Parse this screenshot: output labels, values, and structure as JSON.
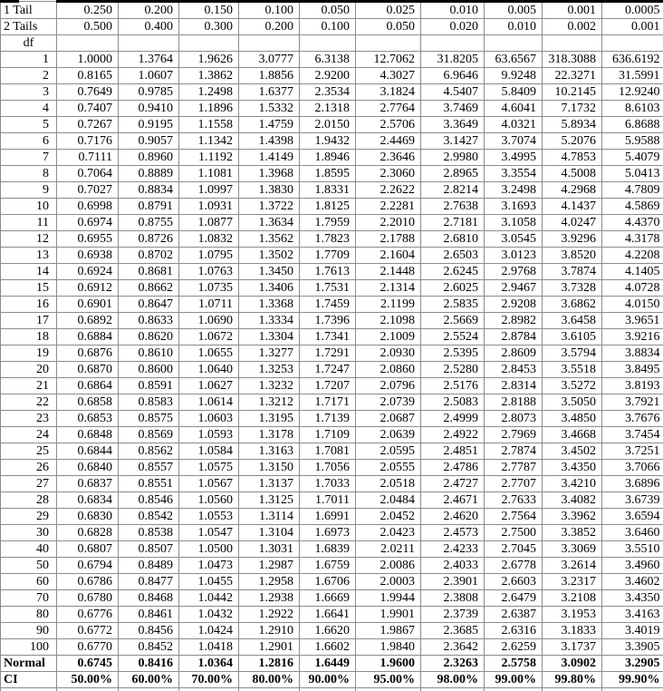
{
  "table": {
    "tail1": {
      "label": "1 Tail",
      "values": [
        "0.250",
        "0.200",
        "0.150",
        "0.100",
        "0.050",
        "0.025",
        "0.010",
        "0.005",
        "0.001",
        "0.0005"
      ]
    },
    "tail2": {
      "label": "2 Tails",
      "values": [
        "0.500",
        "0.400",
        "0.300",
        "0.200",
        "0.100",
        "0.050",
        "0.020",
        "0.010",
        "0.002",
        "0.001"
      ]
    },
    "df_label": "df",
    "df_rows": [
      {
        "df": "1",
        "values": [
          "1.0000",
          "1.3764",
          "1.9626",
          "3.0777",
          "6.3138",
          "12.7062",
          "31.8205",
          "63.6567",
          "318.3088",
          "636.6192"
        ]
      },
      {
        "df": "2",
        "values": [
          "0.8165",
          "1.0607",
          "1.3862",
          "1.8856",
          "2.9200",
          "4.3027",
          "6.9646",
          "9.9248",
          "22.3271",
          "31.5991"
        ]
      },
      {
        "df": "3",
        "values": [
          "0.7649",
          "0.9785",
          "1.2498",
          "1.6377",
          "2.3534",
          "3.1824",
          "4.5407",
          "5.8409",
          "10.2145",
          "12.9240"
        ]
      },
      {
        "df": "4",
        "values": [
          "0.7407",
          "0.9410",
          "1.1896",
          "1.5332",
          "2.1318",
          "2.7764",
          "3.7469",
          "4.6041",
          "7.1732",
          "8.6103"
        ]
      },
      {
        "df": "5",
        "values": [
          "0.7267",
          "0.9195",
          "1.1558",
          "1.4759",
          "2.0150",
          "2.5706",
          "3.3649",
          "4.0321",
          "5.8934",
          "6.8688"
        ]
      },
      {
        "df": "6",
        "values": [
          "0.7176",
          "0.9057",
          "1.1342",
          "1.4398",
          "1.9432",
          "2.4469",
          "3.1427",
          "3.7074",
          "5.2076",
          "5.9588"
        ]
      },
      {
        "df": "7",
        "values": [
          "0.7111",
          "0.8960",
          "1.1192",
          "1.4149",
          "1.8946",
          "2.3646",
          "2.9980",
          "3.4995",
          "4.7853",
          "5.4079"
        ]
      },
      {
        "df": "8",
        "values": [
          "0.7064",
          "0.8889",
          "1.1081",
          "1.3968",
          "1.8595",
          "2.3060",
          "2.8965",
          "3.3554",
          "4.5008",
          "5.0413"
        ]
      },
      {
        "df": "9",
        "values": [
          "0.7027",
          "0.8834",
          "1.0997",
          "1.3830",
          "1.8331",
          "2.2622",
          "2.8214",
          "3.2498",
          "4.2968",
          "4.7809"
        ]
      },
      {
        "df": "10",
        "values": [
          "0.6998",
          "0.8791",
          "1.0931",
          "1.3722",
          "1.8125",
          "2.2281",
          "2.7638",
          "3.1693",
          "4.1437",
          "4.5869"
        ]
      },
      {
        "df": "11",
        "values": [
          "0.6974",
          "0.8755",
          "1.0877",
          "1.3634",
          "1.7959",
          "2.2010",
          "2.7181",
          "3.1058",
          "4.0247",
          "4.4370"
        ]
      },
      {
        "df": "12",
        "values": [
          "0.6955",
          "0.8726",
          "1.0832",
          "1.3562",
          "1.7823",
          "2.1788",
          "2.6810",
          "3.0545",
          "3.9296",
          "4.3178"
        ]
      },
      {
        "df": "13",
        "values": [
          "0.6938",
          "0.8702",
          "1.0795",
          "1.3502",
          "1.7709",
          "2.1604",
          "2.6503",
          "3.0123",
          "3.8520",
          "4.2208"
        ]
      },
      {
        "df": "14",
        "values": [
          "0.6924",
          "0.8681",
          "1.0763",
          "1.3450",
          "1.7613",
          "2.1448",
          "2.6245",
          "2.9768",
          "3.7874",
          "4.1405"
        ]
      },
      {
        "df": "15",
        "values": [
          "0.6912",
          "0.8662",
          "1.0735",
          "1.3406",
          "1.7531",
          "2.1314",
          "2.6025",
          "2.9467",
          "3.7328",
          "4.0728"
        ]
      },
      {
        "df": "16",
        "values": [
          "0.6901",
          "0.8647",
          "1.0711",
          "1.3368",
          "1.7459",
          "2.1199",
          "2.5835",
          "2.9208",
          "3.6862",
          "4.0150"
        ]
      },
      {
        "df": "17",
        "values": [
          "0.6892",
          "0.8633",
          "1.0690",
          "1.3334",
          "1.7396",
          "2.1098",
          "2.5669",
          "2.8982",
          "3.6458",
          "3.9651"
        ]
      },
      {
        "df": "18",
        "values": [
          "0.6884",
          "0.8620",
          "1.0672",
          "1.3304",
          "1.7341",
          "2.1009",
          "2.5524",
          "2.8784",
          "3.6105",
          "3.9216"
        ]
      },
      {
        "df": "19",
        "values": [
          "0.6876",
          "0.8610",
          "1.0655",
          "1.3277",
          "1.7291",
          "2.0930",
          "2.5395",
          "2.8609",
          "3.5794",
          "3.8834"
        ]
      },
      {
        "df": "20",
        "values": [
          "0.6870",
          "0.8600",
          "1.0640",
          "1.3253",
          "1.7247",
          "2.0860",
          "2.5280",
          "2.8453",
          "3.5518",
          "3.8495"
        ]
      },
      {
        "df": "21",
        "values": [
          "0.6864",
          "0.8591",
          "1.0627",
          "1.3232",
          "1.7207",
          "2.0796",
          "2.5176",
          "2.8314",
          "3.5272",
          "3.8193"
        ]
      },
      {
        "df": "22",
        "values": [
          "0.6858",
          "0.8583",
          "1.0614",
          "1.3212",
          "1.7171",
          "2.0739",
          "2.5083",
          "2.8188",
          "3.5050",
          "3.7921"
        ]
      },
      {
        "df": "23",
        "values": [
          "0.6853",
          "0.8575",
          "1.0603",
          "1.3195",
          "1.7139",
          "2.0687",
          "2.4999",
          "2.8073",
          "3.4850",
          "3.7676"
        ]
      },
      {
        "df": "24",
        "values": [
          "0.6848",
          "0.8569",
          "1.0593",
          "1.3178",
          "1.7109",
          "2.0639",
          "2.4922",
          "2.7969",
          "3.4668",
          "3.7454"
        ]
      },
      {
        "df": "25",
        "values": [
          "0.6844",
          "0.8562",
          "1.0584",
          "1.3163",
          "1.7081",
          "2.0595",
          "2.4851",
          "2.7874",
          "3.4502",
          "3.7251"
        ]
      },
      {
        "df": "26",
        "values": [
          "0.6840",
          "0.8557",
          "1.0575",
          "1.3150",
          "1.7056",
          "2.0555",
          "2.4786",
          "2.7787",
          "3.4350",
          "3.7066"
        ]
      },
      {
        "df": "27",
        "values": [
          "0.6837",
          "0.8551",
          "1.0567",
          "1.3137",
          "1.7033",
          "2.0518",
          "2.4727",
          "2.7707",
          "3.4210",
          "3.6896"
        ]
      },
      {
        "df": "28",
        "values": [
          "0.6834",
          "0.8546",
          "1.0560",
          "1.3125",
          "1.7011",
          "2.0484",
          "2.4671",
          "2.7633",
          "3.4082",
          "3.6739"
        ]
      },
      {
        "df": "29",
        "values": [
          "0.6830",
          "0.8542",
          "1.0553",
          "1.3114",
          "1.6991",
          "2.0452",
          "2.4620",
          "2.7564",
          "3.3962",
          "3.6594"
        ]
      },
      {
        "df": "30",
        "values": [
          "0.6828",
          "0.8538",
          "1.0547",
          "1.3104",
          "1.6973",
          "2.0423",
          "2.4573",
          "2.7500",
          "3.3852",
          "3.6460"
        ]
      },
      {
        "df": "40",
        "values": [
          "0.6807",
          "0.8507",
          "1.0500",
          "1.3031",
          "1.6839",
          "2.0211",
          "2.4233",
          "2.7045",
          "3.3069",
          "3.5510"
        ]
      },
      {
        "df": "50",
        "values": [
          "0.6794",
          "0.8489",
          "1.0473",
          "1.2987",
          "1.6759",
          "2.0086",
          "2.4033",
          "2.6778",
          "3.2614",
          "3.4960"
        ]
      },
      {
        "df": "60",
        "values": [
          "0.6786",
          "0.8477",
          "1.0455",
          "1.2958",
          "1.6706",
          "2.0003",
          "2.3901",
          "2.6603",
          "3.2317",
          "3.4602"
        ]
      },
      {
        "df": "70",
        "values": [
          "0.6780",
          "0.8468",
          "1.0442",
          "1.2938",
          "1.6669",
          "1.9944",
          "2.3808",
          "2.6479",
          "3.2108",
          "3.4350"
        ]
      },
      {
        "df": "80",
        "values": [
          "0.6776",
          "0.8461",
          "1.0432",
          "1.2922",
          "1.6641",
          "1.9901",
          "2.3739",
          "2.6387",
          "3.1953",
          "3.4163"
        ]
      },
      {
        "df": "90",
        "values": [
          "0.6772",
          "0.8456",
          "1.0424",
          "1.2910",
          "1.6620",
          "1.9867",
          "2.3685",
          "2.6316",
          "3.1833",
          "3.4019"
        ]
      },
      {
        "df": "100",
        "values": [
          "0.6770",
          "0.8452",
          "1.0418",
          "1.2901",
          "1.6602",
          "1.9840",
          "2.3642",
          "2.6259",
          "3.1737",
          "3.3905"
        ]
      }
    ],
    "normal": {
      "label": "Normal",
      "values": [
        "0.6745",
        "0.8416",
        "1.0364",
        "1.2816",
        "1.6449",
        "1.9600",
        "2.3263",
        "2.5758",
        "3.0902",
        "3.2905"
      ]
    },
    "ci": {
      "label": "CI",
      "values": [
        "50.00%",
        "60.00%",
        "70.00%",
        "80.00%",
        "90.00%",
        "95.00%",
        "98.00%",
        "99.00%",
        "99.80%",
        "99.90%"
      ]
    }
  },
  "colors": {
    "grid": "#8c8c8c",
    "top_border": "#000000",
    "text": "#000000",
    "background": "#ffffff"
  }
}
